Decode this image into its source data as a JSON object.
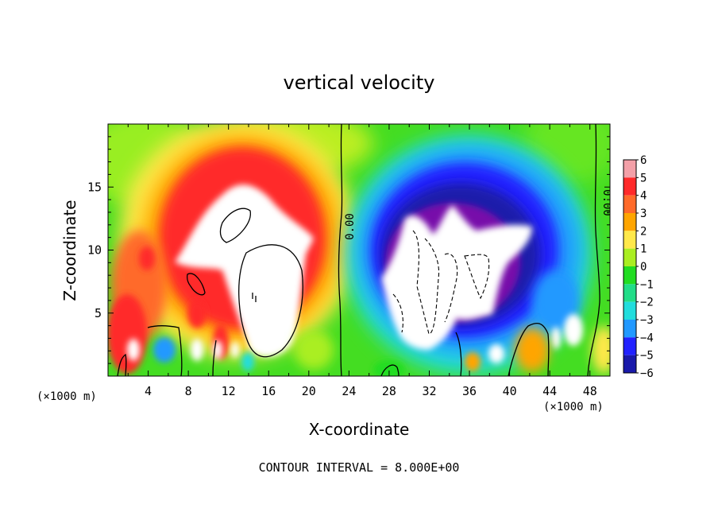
{
  "chart_data": {
    "type": "heatmap",
    "title": "vertical velocity",
    "xlabel": "X-coordinate",
    "ylabel": "Z-coordinate",
    "x_unit": "(×1000 m)",
    "x_ticks": [
      4,
      8,
      12,
      16,
      20,
      24,
      28,
      32,
      36,
      40,
      44,
      48
    ],
    "y_ticks": [
      5,
      10,
      15
    ],
    "xlim": [
      0,
      50
    ],
    "ylim": [
      0,
      20
    ],
    "colorbar": {
      "levels": [
        6,
        5,
        4,
        3,
        2,
        1,
        0,
        -1,
        -2,
        -3,
        -4,
        -5,
        -6
      ],
      "tick_labels": [
        "6",
        "5",
        "4",
        "3",
        "2",
        "1",
        "0",
        "−1",
        "−2",
        "−3",
        "−4",
        "−5",
        "−6"
      ]
    },
    "contour_labels": [
      {
        "text": "0.00",
        "x": 24.1,
        "y": 13.2
      },
      {
        "text": "0.00",
        "x": 48.6,
        "y": 13.3
      }
    ],
    "footer": "CONTOUR INTERVAL = 8.000E+00"
  },
  "colors": {
    "scale": [
      "#f3a0a8",
      "#ff2a2a",
      "#ff6a2a",
      "#ffa500",
      "#ffe84a",
      "#aaee22",
      "#22dd22",
      "#22dd88",
      "#22dddd",
      "#2299ff",
      "#2222ff",
      "#1a1aaa",
      "#7711aa"
    ]
  }
}
